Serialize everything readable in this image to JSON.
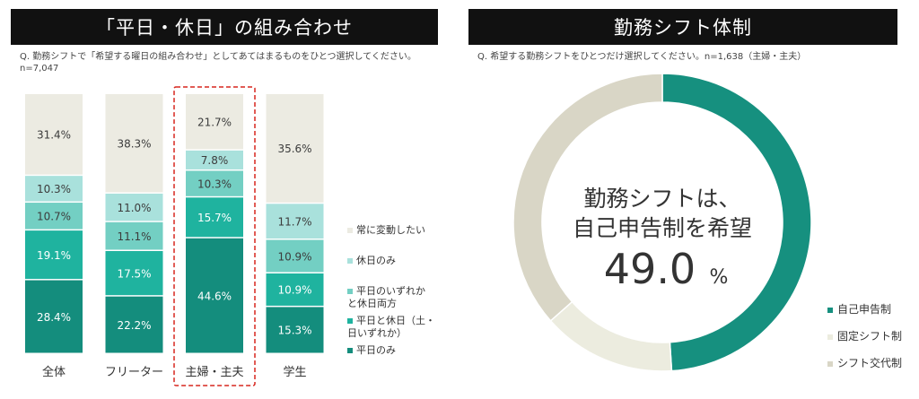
{
  "left": {
    "title": "「平日・休日」の組み合わせ",
    "question": "Q. 勤務シフトで「希望する曜日の組み合わせ」としてあてはまるものをひとつ選択してください。",
    "n": "n=7,047"
  },
  "right": {
    "title": "勤務シフト体制",
    "question": "Q. 希望する勤務シフトをひとつだけ選択してください。n=1,638（主婦・主夫）",
    "center_line1": "勤務シフトは、",
    "center_line2": "自己申告制を希望",
    "center_value": "49.0",
    "center_unit": "%"
  },
  "colors": {
    "always": "#ecebe2",
    "holiday_only": "#a9e1dc",
    "either_both": "#73cfc3",
    "both": "#1fb39f",
    "weekday_only": "#148d7d",
    "highlight": "#d7261e",
    "donut_self": "#16907f",
    "donut_fixed": "#ececdf",
    "donut_rotate": "#d9d6c6"
  },
  "chart_data": [
    {
      "type": "bar",
      "stacked": true,
      "percent": true,
      "categories": [
        "全体",
        "フリーター",
        "主婦・主夫",
        "学生"
      ],
      "highlighted_category": "主婦・主夫",
      "series": [
        {
          "name": "平日のみ",
          "values": [
            28.4,
            22.2,
            44.6,
            15.3
          ],
          "labels": [
            "28.4%",
            "22.2%",
            "44.6%",
            "15.3%"
          ],
          "color_key": "weekday_only",
          "legend": [
            "平日のみ"
          ]
        },
        {
          "name": "平日と休日（土・日いずれか）",
          "values": [
            19.1,
            17.5,
            15.7,
            10.9
          ],
          "labels": [
            "19.1%",
            "17.5%",
            "15.7%",
            "10.9%"
          ],
          "color_key": "both",
          "legend": [
            "平日と休日（土・",
            "日いずれか）"
          ]
        },
        {
          "name": "平日のいずれかと休日両方",
          "values": [
            10.7,
            11.1,
            10.3,
            10.9
          ],
          "labels": [
            "10.7%",
            "11.1%",
            "10.3%",
            "10.9%"
          ],
          "color_key": "either_both",
          "legend": [
            "平日のいずれか",
            "と休日両方"
          ]
        },
        {
          "name": "休日のみ",
          "values": [
            10.3,
            11.0,
            7.8,
            11.7
          ],
          "labels": [
            "10.3%",
            "11.0%",
            "7.8%",
            "11.7%"
          ],
          "color_key": "holiday_only",
          "legend": [
            "休日のみ"
          ]
        },
        {
          "name": "常に変動したい",
          "values": [
            31.4,
            38.3,
            21.7,
            35.6
          ],
          "labels": [
            "31.4%",
            "38.3%",
            "21.7%",
            "35.6%"
          ],
          "color_key": "always",
          "legend": [
            "常に変動したい"
          ]
        }
      ],
      "legend_position": "right"
    },
    {
      "type": "pie",
      "donut": true,
      "slices": [
        {
          "name": "自己申告制",
          "value": 49.0,
          "color_key": "donut_self"
        },
        {
          "name": "固定シフト制",
          "value": 14.5,
          "color_key": "donut_fixed"
        },
        {
          "name": "シフト交代制",
          "value": 36.5,
          "color_key": "donut_rotate"
        }
      ],
      "legend_position": "right-bottom"
    }
  ]
}
